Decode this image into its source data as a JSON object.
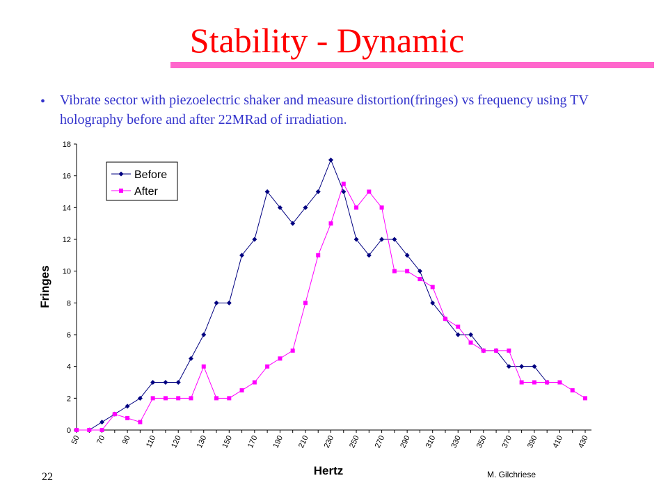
{
  "slide": {
    "title": "Stability - Dynamic",
    "bullet": "Vibrate sector with piezoelectric shaker and measure distortion(fringes) vs frequency using TV holography before and after 22MRad of irradiation.",
    "page_number": "22",
    "author": "M. Gilchriese"
  },
  "chart_data": {
    "type": "line",
    "x_label": "Hertz",
    "y_label": "Fringes",
    "categories": [
      "50",
      null,
      "70",
      null,
      "90",
      null,
      "110",
      null,
      "120",
      null,
      "130",
      null,
      "150",
      null,
      "170",
      null,
      "190",
      null,
      "210",
      null,
      "230",
      null,
      "250",
      null,
      "270",
      null,
      "290",
      null,
      "310",
      null,
      "330",
      null,
      "350",
      null,
      "370",
      null,
      "390",
      null,
      "410",
      null,
      "430"
    ],
    "series": [
      {
        "name": "Before",
        "color": "#000080",
        "marker": "diamond",
        "values": [
          0,
          0,
          0.5,
          1,
          1.5,
          2,
          3,
          3,
          3,
          4.5,
          6,
          8,
          8,
          11,
          12,
          15,
          14,
          13,
          14,
          15,
          17,
          15,
          12,
          11,
          12,
          12,
          11,
          10,
          8,
          7,
          6,
          6,
          5,
          5,
          4,
          4,
          4,
          3,
          null,
          null,
          null
        ]
      },
      {
        "name": "After",
        "color": "#ff00ff",
        "marker": "square",
        "values": [
          0,
          0,
          0,
          1,
          0.75,
          0.5,
          2,
          2,
          2,
          2,
          4,
          2,
          2,
          2.5,
          3,
          4,
          4.5,
          5,
          8,
          11,
          13,
          15.5,
          14,
          15,
          14,
          10,
          10,
          9.5,
          9,
          7,
          6.5,
          5.5,
          5,
          5,
          5,
          3,
          3,
          3,
          3,
          2.5,
          2
        ]
      }
    ],
    "ylim": [
      0,
      18
    ],
    "yticks": [
      0,
      2,
      4,
      6,
      8,
      10,
      12,
      14,
      16,
      18
    ],
    "legend": "top-left"
  }
}
